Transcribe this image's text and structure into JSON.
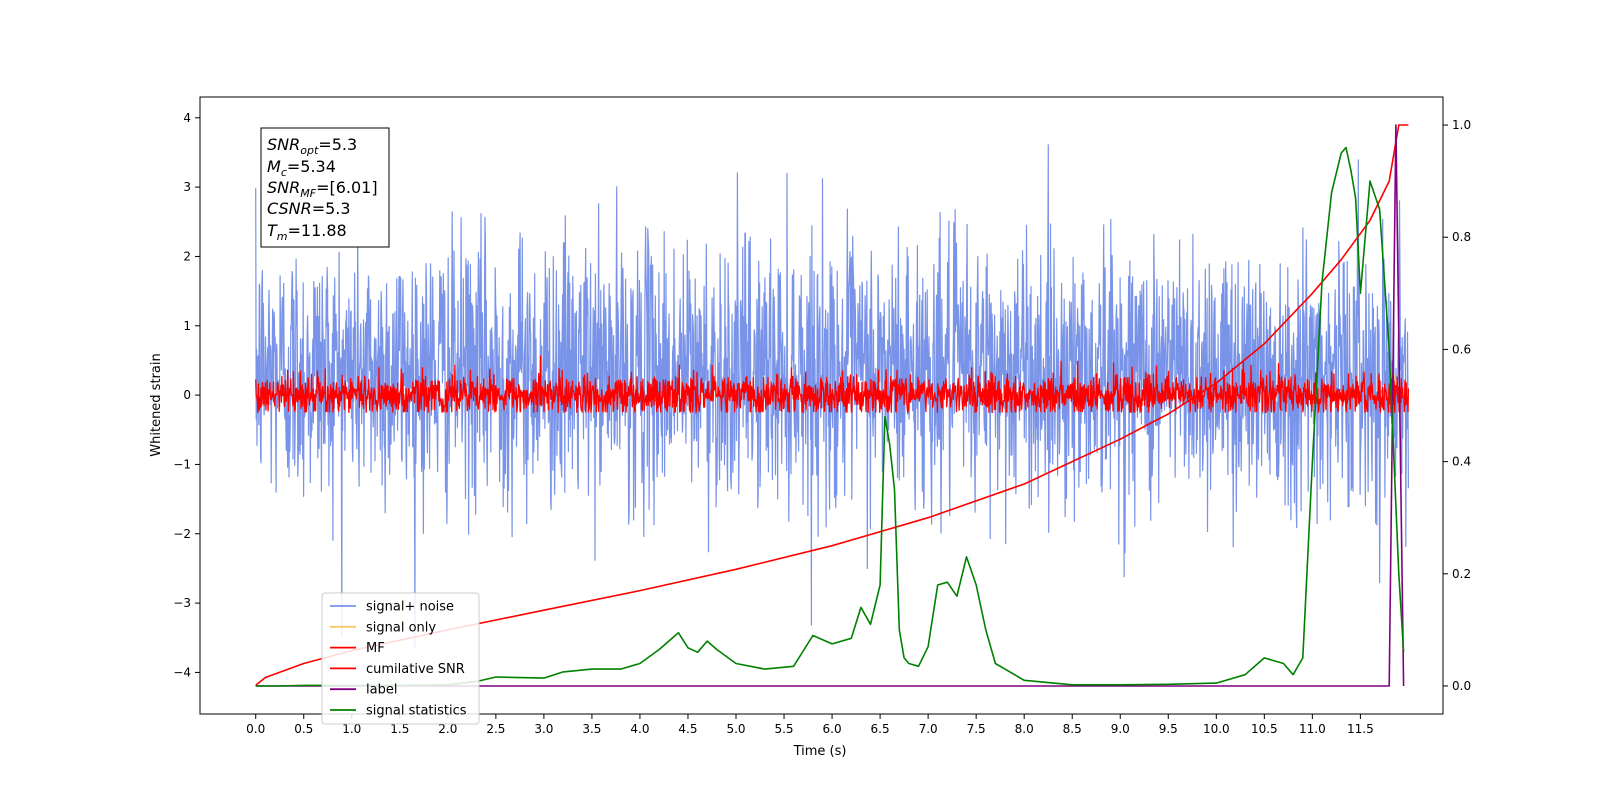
{
  "chart_data": {
    "type": "line",
    "xlabel": "Time (s)",
    "ylabel": "Whitened strain",
    "ylabel_right": "",
    "xlim": [
      -0.58,
      12.36
    ],
    "ylim": [
      -4.6,
      4.3
    ],
    "ylim_right": [
      -0.05,
      1.05
    ],
    "x_ticks": [
      "0.0",
      "0.5",
      "1.0",
      "1.5",
      "2.0",
      "2.5",
      "3.0",
      "3.5",
      "4.0",
      "4.5",
      "5.0",
      "5.5",
      "6.0",
      "6.5",
      "7.0",
      "7.5",
      "8.0",
      "8.5",
      "9.0",
      "9.5",
      "10.0",
      "10.5",
      "11.0",
      "11.5"
    ],
    "y_ticks": [
      "4",
      "3",
      "2",
      "1",
      "0",
      "−1",
      "−2",
      "−3",
      "−4"
    ],
    "y_ticks_right": [
      "1.0",
      "0.8",
      "0.6",
      "0.4",
      "0.2",
      "0.0"
    ],
    "grid": false,
    "legend_position": "lower-left",
    "annotation": {
      "snr_opt_label": "SNR",
      "snr_opt_sub": "opt",
      "snr_opt_value": "=5.3",
      "mc_label": "M",
      "mc_sub": "c",
      "mc_value": "=5.34",
      "snr_mf_label": "SNR",
      "snr_mf_sub": "MF",
      "snr_mf_value": "=[6.01]",
      "csnr_label": "CSNR",
      "csnr_value": "=5.3",
      "tm_label": "T",
      "tm_sub": "m",
      "tm_value": "=11.88"
    },
    "series": [
      {
        "name": "signal+ noise",
        "color": "#7893e8",
        "axis": "left",
        "kind": "noise",
        "x_range": [
          0,
          12.0
        ],
        "mean": 0.35,
        "std": 0.95,
        "envelope": {
          "max": 3.9,
          "min": -3.7
        }
      },
      {
        "name": "signal only",
        "color": "#f5c96b",
        "axis": "left",
        "x": [
          11.8,
          11.85,
          11.9
        ],
        "y": [
          0.0,
          0.3,
          0.0
        ]
      },
      {
        "name": "MF",
        "color": "#ff0000",
        "axis": "left",
        "kind": "noise",
        "x_range": [
          0,
          12.0
        ],
        "mean": 0.0,
        "std": 0.15,
        "envelope": {
          "max": 0.9,
          "min": -0.25
        }
      },
      {
        "name": "cumilative SNR",
        "color": "#ff0000",
        "axis": "right",
        "x": [
          0.0,
          0.1,
          0.5,
          1.0,
          2.0,
          3.0,
          4.0,
          5.0,
          6.0,
          7.0,
          8.0,
          9.0,
          9.5,
          10.0,
          10.5,
          11.0,
          11.3,
          11.6,
          11.8,
          11.9,
          11.95,
          12.0
        ],
        "y": [
          0.001,
          0.015,
          0.04,
          0.063,
          0.1,
          0.135,
          0.17,
          0.208,
          0.25,
          0.3,
          0.36,
          0.44,
          0.485,
          0.54,
          0.61,
          0.7,
          0.76,
          0.83,
          0.9,
          1.0,
          1.0,
          1.0
        ]
      },
      {
        "name": "label",
        "color": "#800080",
        "axis": "right",
        "x": [
          0.0,
          11.8,
          11.87,
          11.95
        ],
        "y": [
          0.0,
          0.0,
          1.0,
          0.0
        ]
      },
      {
        "name": "signal statistics",
        "color": "#008000",
        "axis": "right",
        "x": [
          0.0,
          0.2,
          0.5,
          1.0,
          1.5,
          2.0,
          2.3,
          2.5,
          3.0,
          3.2,
          3.5,
          3.8,
          4.0,
          4.2,
          4.3,
          4.4,
          4.5,
          4.6,
          4.7,
          4.8,
          5.0,
          5.3,
          5.6,
          5.8,
          6.0,
          6.2,
          6.3,
          6.4,
          6.5,
          6.55,
          6.6,
          6.65,
          6.7,
          6.75,
          6.8,
          6.9,
          7.0,
          7.1,
          7.2,
          7.3,
          7.4,
          7.5,
          7.6,
          7.7,
          7.8,
          8.0,
          8.5,
          9.0,
          9.5,
          10.0,
          10.3,
          10.5,
          10.7,
          10.8,
          10.9,
          11.0,
          11.1,
          11.2,
          11.3,
          11.35,
          11.4,
          11.45,
          11.5,
          11.6,
          11.7,
          11.8,
          11.9,
          11.95
        ],
        "y": [
          0.0,
          0.0,
          0.001,
          0.001,
          0.001,
          0.002,
          0.008,
          0.016,
          0.014,
          0.025,
          0.03,
          0.03,
          0.04,
          0.065,
          0.08,
          0.095,
          0.068,
          0.06,
          0.08,
          0.065,
          0.04,
          0.03,
          0.035,
          0.09,
          0.075,
          0.085,
          0.14,
          0.11,
          0.18,
          0.48,
          0.43,
          0.35,
          0.1,
          0.05,
          0.04,
          0.035,
          0.07,
          0.18,
          0.185,
          0.16,
          0.23,
          0.18,
          0.1,
          0.04,
          0.03,
          0.01,
          0.002,
          0.002,
          0.003,
          0.005,
          0.02,
          0.05,
          0.04,
          0.02,
          0.05,
          0.4,
          0.72,
          0.88,
          0.95,
          0.96,
          0.92,
          0.87,
          0.7,
          0.9,
          0.85,
          0.6,
          0.2,
          0.06
        ]
      }
    ]
  }
}
